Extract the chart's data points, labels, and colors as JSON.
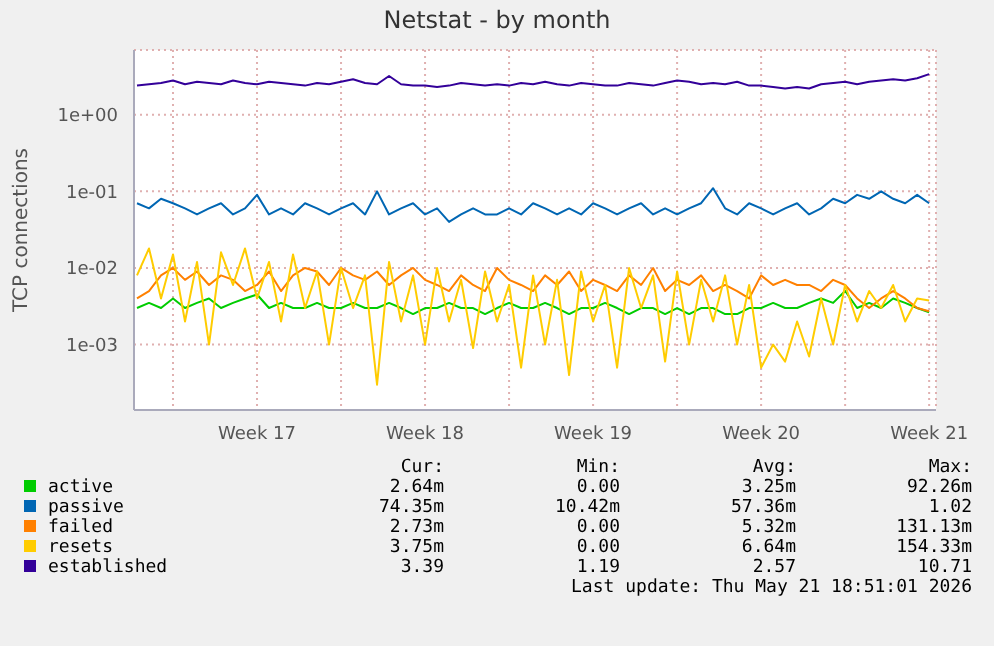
{
  "chart_data": {
    "type": "line",
    "title": "Netstat - by month",
    "ylabel": "TCP connections",
    "x": [
      "2026-04-18T12:00",
      "2026-04-19T00:00",
      "2026-04-19T12:00",
      "2026-04-20T00:00",
      "2026-04-20T12:00",
      "2026-04-21T00:00",
      "2026-04-21T12:00",
      "2026-04-22T00:00",
      "2026-04-22T12:00",
      "2026-04-23T00:00",
      "2026-04-23T12:00",
      "2026-04-24T00:00",
      "2026-04-24T12:00",
      "2026-04-25T00:00",
      "2026-04-25T12:00",
      "2026-04-26T00:00",
      "2026-04-26T12:00",
      "2026-04-27T00:00",
      "2026-04-27T12:00",
      "2026-04-28T00:00",
      "2026-04-28T12:00",
      "2026-04-29T00:00",
      "2026-04-29T12:00",
      "2026-04-30T00:00",
      "2026-04-30T12:00",
      "2026-05-01T00:00",
      "2026-05-01T12:00",
      "2026-05-02T00:00",
      "2026-05-02T12:00",
      "2026-05-03T00:00",
      "2026-05-03T12:00",
      "2026-05-04T00:00",
      "2026-05-04T12:00",
      "2026-05-05T00:00",
      "2026-05-05T12:00",
      "2026-05-06T00:00",
      "2026-05-06T12:00",
      "2026-05-07T00:00",
      "2026-05-07T12:00",
      "2026-05-08T00:00",
      "2026-05-08T12:00",
      "2026-05-09T00:00",
      "2026-05-09T12:00",
      "2026-05-10T00:00",
      "2026-05-10T12:00",
      "2026-05-11T00:00",
      "2026-05-11T12:00",
      "2026-05-12T00:00",
      "2026-05-12T12:00",
      "2026-05-13T00:00",
      "2026-05-13T12:00",
      "2026-05-14T00:00",
      "2026-05-14T12:00",
      "2026-05-15T00:00",
      "2026-05-15T12:00",
      "2026-05-16T00:00",
      "2026-05-16T12:00",
      "2026-05-17T00:00",
      "2026-05-17T12:00",
      "2026-05-18T00:00",
      "2026-05-18T12:00",
      "2026-05-19T00:00",
      "2026-05-19T12:00",
      "2026-05-20T00:00",
      "2026-05-20T12:00",
      "2026-05-21T00:00",
      "2026-05-21T12:00"
    ],
    "series": [
      {
        "name": "active",
        "color": "#00cc00",
        "values": [
          0.003,
          0.0035,
          0.003,
          0.004,
          0.003,
          0.0035,
          0.004,
          0.003,
          0.0035,
          0.004,
          0.0045,
          0.003,
          0.0035,
          0.003,
          0.003,
          0.0035,
          0.003,
          0.003,
          0.0035,
          0.003,
          0.003,
          0.0035,
          0.003,
          0.0025,
          0.003,
          0.003,
          0.0035,
          0.003,
          0.003,
          0.0025,
          0.003,
          0.0035,
          0.003,
          0.003,
          0.0035,
          0.003,
          0.0025,
          0.003,
          0.003,
          0.0035,
          0.003,
          0.0025,
          0.003,
          0.003,
          0.0025,
          0.003,
          0.0025,
          0.003,
          0.003,
          0.0025,
          0.0025,
          0.003,
          0.003,
          0.0035,
          0.003,
          0.003,
          0.0035,
          0.004,
          0.0035,
          0.005,
          0.003,
          0.0035,
          0.003,
          0.004,
          0.0035,
          0.003,
          0.00264
        ]
      },
      {
        "name": "passive",
        "color": "#0066b3",
        "values": [
          0.07,
          0.06,
          0.08,
          0.07,
          0.06,
          0.05,
          0.06,
          0.07,
          0.05,
          0.06,
          0.09,
          0.05,
          0.06,
          0.05,
          0.07,
          0.06,
          0.05,
          0.06,
          0.07,
          0.05,
          0.1,
          0.05,
          0.06,
          0.07,
          0.05,
          0.06,
          0.04,
          0.05,
          0.06,
          0.05,
          0.05,
          0.06,
          0.05,
          0.07,
          0.06,
          0.05,
          0.06,
          0.05,
          0.07,
          0.06,
          0.05,
          0.06,
          0.07,
          0.05,
          0.06,
          0.05,
          0.06,
          0.07,
          0.11,
          0.06,
          0.05,
          0.07,
          0.06,
          0.05,
          0.06,
          0.07,
          0.05,
          0.06,
          0.08,
          0.07,
          0.09,
          0.08,
          0.1,
          0.08,
          0.07,
          0.09,
          0.07
        ]
      },
      {
        "name": "failed",
        "color": "#ff8000",
        "values": [
          0.004,
          0.005,
          0.008,
          0.01,
          0.007,
          0.009,
          0.006,
          0.008,
          0.007,
          0.005,
          0.006,
          0.009,
          0.005,
          0.008,
          0.01,
          0.009,
          0.006,
          0.01,
          0.008,
          0.007,
          0.009,
          0.006,
          0.008,
          0.01,
          0.007,
          0.006,
          0.005,
          0.008,
          0.006,
          0.005,
          0.01,
          0.007,
          0.006,
          0.005,
          0.008,
          0.006,
          0.009,
          0.005,
          0.007,
          0.006,
          0.005,
          0.008,
          0.006,
          0.01,
          0.005,
          0.007,
          0.006,
          0.008,
          0.005,
          0.006,
          0.005,
          0.004,
          0.008,
          0.006,
          0.007,
          0.006,
          0.006,
          0.005,
          0.007,
          0.006,
          0.004,
          0.003,
          0.004,
          0.005,
          0.004,
          0.003,
          0.00273
        ]
      },
      {
        "name": "resets",
        "color": "#ffcc00",
        "values": [
          0.008,
          0.018,
          0.004,
          0.015,
          0.002,
          0.012,
          0.001,
          0.016,
          0.006,
          0.018,
          0.004,
          0.012,
          0.002,
          0.015,
          0.003,
          0.009,
          0.001,
          0.01,
          0.003,
          0.008,
          0.0003,
          0.012,
          0.002,
          0.008,
          0.001,
          0.01,
          0.002,
          0.007,
          0.0009,
          0.009,
          0.002,
          0.006,
          0.0005,
          0.008,
          0.001,
          0.007,
          0.0004,
          0.009,
          0.002,
          0.006,
          0.0005,
          0.01,
          0.003,
          0.008,
          0.0006,
          0.009,
          0.001,
          0.007,
          0.002,
          0.008,
          0.001,
          0.006,
          0.0005,
          0.001,
          0.0006,
          0.002,
          0.0007,
          0.004,
          0.001,
          0.006,
          0.002,
          0.005,
          0.003,
          0.006,
          0.002,
          0.004,
          0.00375
        ]
      },
      {
        "name": "established",
        "color": "#330099",
        "values": [
          2.4,
          2.5,
          2.6,
          2.8,
          2.5,
          2.7,
          2.6,
          2.5,
          2.8,
          2.6,
          2.5,
          2.7,
          2.6,
          2.5,
          2.4,
          2.6,
          2.5,
          2.7,
          2.9,
          2.6,
          2.5,
          3.2,
          2.5,
          2.4,
          2.4,
          2.3,
          2.4,
          2.6,
          2.5,
          2.4,
          2.5,
          2.4,
          2.6,
          2.5,
          2.7,
          2.5,
          2.4,
          2.6,
          2.5,
          2.4,
          2.4,
          2.6,
          2.5,
          2.4,
          2.6,
          2.8,
          2.7,
          2.5,
          2.6,
          2.5,
          2.7,
          2.4,
          2.4,
          2.3,
          2.2,
          2.3,
          2.2,
          2.5,
          2.6,
          2.7,
          2.5,
          2.7,
          2.8,
          2.9,
          2.8,
          3.0,
          3.39
        ]
      }
    ],
    "log": "y",
    "ylim": [
      0.00014,
      7
    ],
    "yticks": [
      {
        "value": 0.001,
        "label": "1e-03"
      },
      {
        "value": 0.01,
        "label": "1e-02"
      },
      {
        "value": 0.1,
        "label": "1e-01"
      },
      {
        "value": 1,
        "label": "1e+00"
      }
    ],
    "xlim": [
      "2026-04-18T09:00",
      "2026-05-21T18:51"
    ],
    "xticks": [
      {
        "value": "2026-04-20T00:00",
        "label": null
      },
      {
        "value": "2026-04-23T12:00",
        "label": "Week 17"
      },
      {
        "value": "2026-04-27T00:00",
        "label": null
      },
      {
        "value": "2026-04-30T12:00",
        "label": "Week 18"
      },
      {
        "value": "2026-05-04T00:00",
        "label": null
      },
      {
        "value": "2026-05-07T12:00",
        "label": "Week 19"
      },
      {
        "value": "2026-05-11T00:00",
        "label": null
      },
      {
        "value": "2026-05-14T12:00",
        "label": "Week 20"
      },
      {
        "value": "2026-05-18T00:00",
        "label": null
      },
      {
        "value": "2026-05-21T12:00",
        "label": "Week 21"
      }
    ],
    "grid": true,
    "legend": "bottom",
    "annotations": [
      "Cur:",
      "Min:",
      "Avg:",
      "Max:",
      "2.64m",
      "0.00",
      "3.25m",
      "92.26m",
      "74.35m",
      "10.42m",
      "57.36m",
      "1.02",
      "2.73m",
      "0.00",
      "5.32m",
      "131.13m",
      "3.75m",
      "0.00",
      "6.64m",
      "154.33m",
      "3.39",
      "1.19",
      "2.57",
      "10.71",
      "Last update: Thu May 21 18:51:01 2026"
    ]
  }
}
